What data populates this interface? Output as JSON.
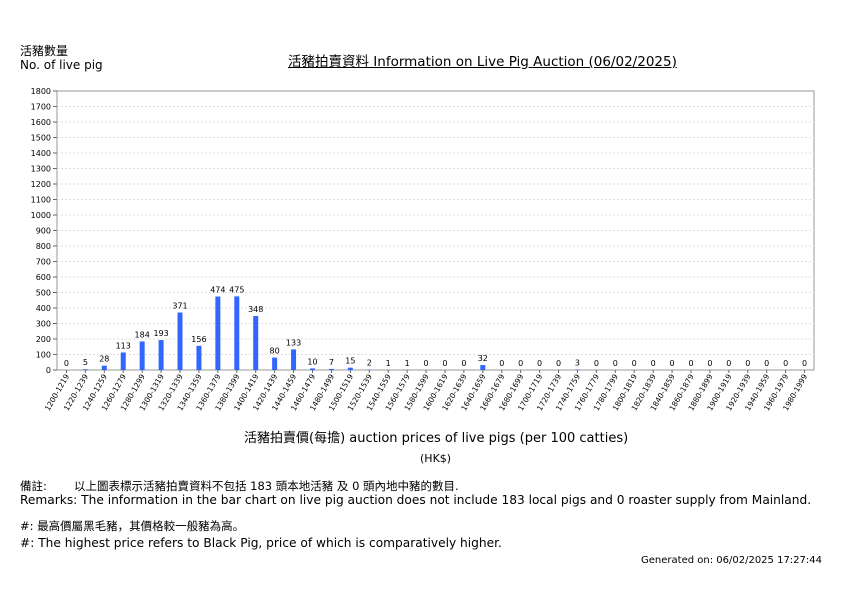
{
  "header": {
    "ylabel_zh": "活豬數量",
    "ylabel_en": "No. of live pig",
    "title": "活豬拍賣資料 Information on Live Pig Auction (06/02/2025)"
  },
  "chart_data": {
    "type": "bar",
    "title": "活豬拍賣資料 Information on Live Pig Auction (06/02/2025)",
    "ylabel": "活豬數量 No. of live pig",
    "xlabel": "活豬拍賣價(每擔) auction prices of live pigs (per 100 catties)",
    "unit": "(HK$)",
    "ylim": [
      0,
      1800
    ],
    "yticks": [
      0,
      100,
      200,
      300,
      400,
      500,
      600,
      700,
      800,
      900,
      1000,
      1100,
      1200,
      1300,
      1400,
      1500,
      1600,
      1700,
      1800
    ],
    "grid": true,
    "bar_color": "#3366ff",
    "categories": [
      "1200-1219",
      "1220-1239",
      "1240-1259",
      "1260-1279",
      "1280-1299",
      "1300-1319",
      "1320-1339",
      "1340-1359",
      "1360-1379",
      "1380-1399",
      "1400-1419",
      "1420-1439",
      "1440-1459",
      "1460-1479",
      "1480-1499",
      "1500-1519",
      "1520-1539",
      "1540-1559",
      "1560-1579",
      "1580-1599",
      "1600-1619",
      "1620-1639",
      "1640-1659",
      "1660-1679",
      "1680-1699",
      "1700-1719",
      "1720-1739",
      "1740-1759",
      "1760-1779",
      "1780-1799",
      "1800-1819",
      "1820-1839",
      "1840-1859",
      "1860-1879",
      "1880-1899",
      "1900-1919",
      "1920-1939",
      "1940-1959",
      "1960-1979",
      "1980-1999"
    ],
    "values": [
      0,
      5,
      28,
      113,
      184,
      193,
      371,
      156,
      474,
      475,
      348,
      80,
      133,
      10,
      7,
      15,
      2,
      1,
      1,
      0,
      0,
      0,
      32,
      0,
      0,
      0,
      0,
      3,
      0,
      0,
      0,
      0,
      0,
      0,
      0,
      0,
      0,
      0,
      0,
      0
    ]
  },
  "footer": {
    "xlabel": "活豬拍賣價(每擔) auction prices of live pigs (per 100 catties)",
    "unit": "(HK$)",
    "remarks_zh_label": "備註:",
    "remarks_zh": "以上圖表標示活豬拍賣資料不包括 183 頭本地活豬 及 0 頭內地中豬的數目.",
    "remarks_en": "Remarks: The information in the bar chart on live pig auction does not include 183 local pigs and 0 roaster supply from Mainland.",
    "note_zh": "#: 最高價屬黑毛豬，其價格較一般豬為高。",
    "note_en": "#: The highest price refers to Black Pig, price of which is comparatively higher.",
    "generated": "Generated on: 06/02/2025 17:27:44"
  }
}
